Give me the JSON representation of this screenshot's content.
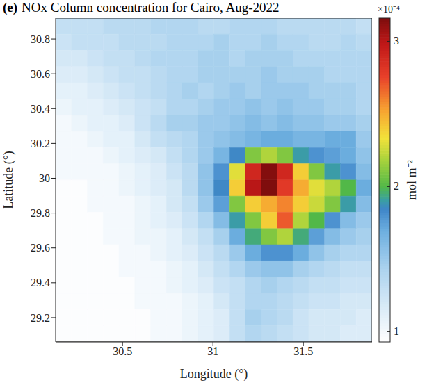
{
  "chart_data": {
    "type": "heatmap",
    "panel": "(e)",
    "title": "NOx Column concentration for Cairo, Aug-2022",
    "x_label": "Longitude (°)",
    "y_label": "Latitude (°)",
    "xlim": [
      30.13,
      31.88
    ],
    "ylim": [
      29.06,
      30.92
    ],
    "xticks": [
      30.5,
      31,
      31.5
    ],
    "yticks": [
      29.2,
      29.4,
      29.6,
      29.8,
      30,
      30.2,
      30.4,
      30.6,
      30.8
    ],
    "x": [
      30.174,
      30.261,
      30.349,
      30.436,
      30.524,
      30.611,
      30.699,
      30.786,
      30.874,
      30.961,
      31.049,
      31.136,
      31.224,
      31.311,
      31.399,
      31.486,
      31.574,
      31.661,
      31.749,
      31.836
    ],
    "y": [
      30.874,
      30.781,
      30.688,
      30.595,
      30.502,
      30.409,
      30.316,
      30.223,
      30.13,
      30.037,
      29.944,
      29.851,
      29.758,
      29.665,
      29.572,
      29.479,
      29.386,
      29.293,
      29.2,
      29.107
    ],
    "z": [
      [
        1.3,
        1.3,
        1.3,
        1.35,
        1.35,
        1.35,
        1.4,
        1.4,
        1.4,
        1.35,
        1.35,
        1.4,
        1.4,
        1.4,
        1.35,
        1.35,
        1.35,
        1.35,
        1.35,
        1.3
      ],
      [
        1.25,
        1.3,
        1.3,
        1.3,
        1.35,
        1.35,
        1.35,
        1.4,
        1.4,
        1.4,
        1.45,
        1.4,
        1.4,
        1.45,
        1.4,
        1.4,
        1.35,
        1.35,
        1.4,
        1.35
      ],
      [
        1.2,
        1.2,
        1.25,
        1.3,
        1.3,
        1.35,
        1.4,
        1.4,
        1.4,
        1.45,
        1.45,
        1.4,
        1.45,
        1.45,
        1.45,
        1.4,
        1.4,
        1.4,
        1.4,
        1.4
      ],
      [
        1.15,
        1.15,
        1.2,
        1.25,
        1.3,
        1.3,
        1.35,
        1.4,
        1.4,
        1.45,
        1.45,
        1.45,
        1.45,
        1.5,
        1.45,
        1.45,
        1.45,
        1.4,
        1.4,
        1.4
      ],
      [
        1.1,
        1.1,
        1.15,
        1.2,
        1.25,
        1.3,
        1.35,
        1.4,
        1.45,
        1.4,
        1.45,
        1.5,
        1.45,
        1.5,
        1.5,
        1.5,
        1.45,
        1.45,
        1.45,
        1.4
      ],
      [
        1.05,
        1.1,
        1.1,
        1.15,
        1.2,
        1.25,
        1.3,
        1.4,
        1.4,
        1.45,
        1.5,
        1.5,
        1.55,
        1.5,
        1.55,
        1.5,
        1.5,
        1.45,
        1.45,
        1.4
      ],
      [
        1.0,
        1.05,
        1.1,
        1.1,
        1.15,
        1.25,
        1.35,
        1.45,
        1.45,
        1.5,
        1.5,
        1.55,
        1.6,
        1.55,
        1.6,
        1.55,
        1.55,
        1.5,
        1.5,
        1.45
      ],
      [
        1.0,
        1.0,
        1.05,
        1.1,
        1.1,
        1.2,
        1.3,
        1.35,
        1.4,
        1.5,
        1.55,
        1.6,
        1.65,
        1.7,
        1.7,
        1.65,
        1.65,
        1.7,
        1.7,
        1.5
      ],
      [
        1.0,
        1.0,
        1.0,
        1.05,
        1.1,
        1.15,
        1.2,
        1.3,
        1.4,
        1.5,
        1.65,
        1.85,
        2.1,
        2.2,
        2.1,
        1.9,
        1.8,
        1.75,
        1.7,
        1.55
      ],
      [
        1.0,
        1.0,
        1.0,
        1.0,
        1.05,
        1.1,
        1.15,
        1.25,
        1.35,
        1.55,
        1.8,
        2.3,
        2.9,
        3.15,
        2.9,
        2.4,
        2.1,
        1.9,
        1.8,
        1.6
      ],
      [
        0.95,
        0.95,
        1.0,
        1.0,
        1.05,
        1.1,
        1.15,
        1.2,
        1.35,
        1.55,
        1.85,
        2.4,
        3.0,
        3.2,
        2.8,
        2.5,
        2.3,
        2.2,
        2.0,
        1.7
      ],
      [
        0.95,
        0.95,
        1.0,
        1.0,
        1.0,
        1.05,
        1.1,
        1.2,
        1.3,
        1.5,
        1.75,
        2.1,
        2.4,
        2.5,
        2.6,
        2.4,
        2.25,
        2.1,
        1.9,
        1.6
      ],
      [
        0.95,
        0.95,
        0.95,
        1.0,
        1.0,
        1.05,
        1.1,
        1.15,
        1.25,
        1.4,
        1.6,
        1.9,
        2.1,
        2.4,
        2.7,
        2.2,
        2.0,
        1.8,
        1.6,
        1.5
      ],
      [
        0.95,
        0.95,
        0.95,
        1.0,
        1.0,
        1.05,
        1.05,
        1.1,
        1.2,
        1.3,
        1.45,
        1.7,
        1.95,
        2.1,
        2.2,
        1.95,
        1.75,
        1.6,
        1.5,
        1.45
      ],
      [
        0.95,
        0.95,
        0.95,
        0.95,
        1.0,
        1.0,
        1.05,
        1.1,
        1.15,
        1.25,
        1.35,
        1.5,
        1.7,
        1.8,
        1.8,
        1.7,
        1.55,
        1.45,
        1.4,
        1.4
      ],
      [
        0.95,
        0.95,
        0.95,
        0.95,
        1.0,
        1.0,
        1.0,
        1.05,
        1.1,
        1.2,
        1.3,
        1.4,
        1.5,
        1.55,
        1.55,
        1.45,
        1.4,
        1.35,
        1.3,
        1.3
      ],
      [
        0.95,
        0.95,
        0.95,
        0.95,
        0.95,
        1.0,
        1.0,
        1.05,
        1.1,
        1.15,
        1.25,
        1.3,
        1.4,
        1.45,
        1.4,
        1.35,
        1.3,
        1.3,
        1.25,
        1.25
      ],
      [
        0.95,
        0.95,
        0.95,
        0.95,
        0.95,
        1.0,
        1.0,
        1.0,
        1.05,
        1.1,
        1.2,
        1.3,
        1.4,
        1.4,
        1.35,
        1.3,
        1.25,
        1.25,
        1.2,
        1.2
      ],
      [
        0.95,
        0.95,
        0.95,
        0.95,
        0.95,
        0.95,
        1.0,
        1.0,
        1.05,
        1.1,
        1.15,
        1.3,
        1.45,
        1.4,
        1.35,
        1.25,
        1.2,
        1.2,
        1.2,
        1.15
      ],
      [
        0.95,
        0.95,
        0.95,
        0.95,
        0.95,
        0.95,
        1.0,
        1.0,
        1.05,
        1.1,
        1.15,
        1.3,
        1.4,
        1.35,
        1.3,
        1.25,
        1.2,
        1.2,
        1.15,
        1.15
      ]
    ],
    "colorbar": {
      "range": [
        0.93,
        3.16
      ],
      "ticks": [
        1,
        2,
        3
      ],
      "label": "mol m⁻²",
      "exponent": "×10⁻⁴"
    }
  }
}
